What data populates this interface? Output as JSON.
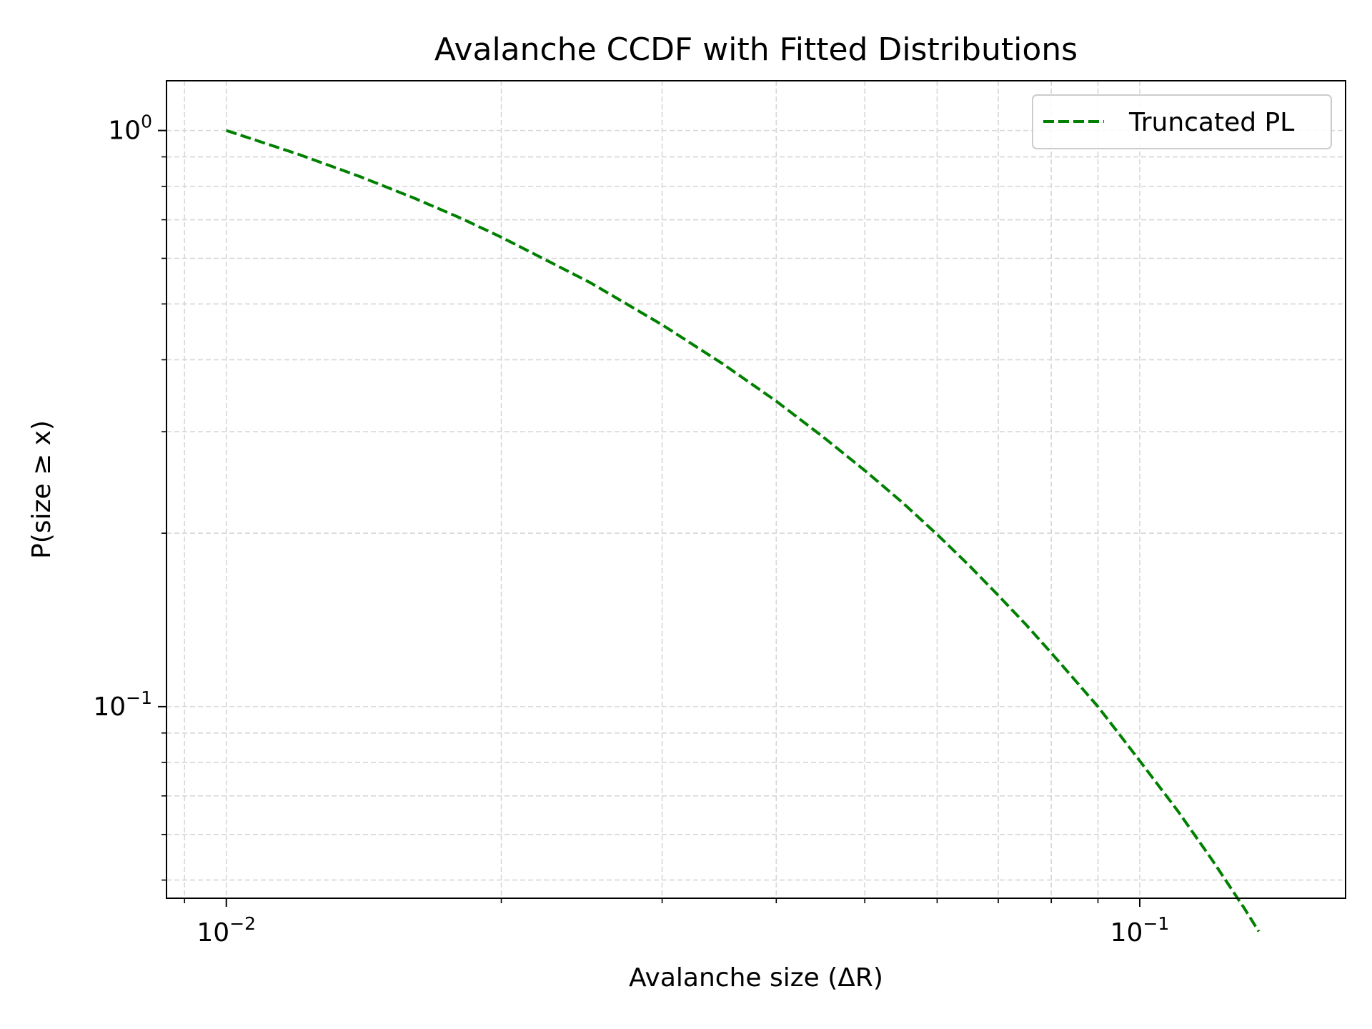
{
  "chart_data": {
    "type": "line",
    "title": "Avalanche CCDF with Fitted Distributions",
    "xlabel": "Avalanche size (ΔR)",
    "ylabel": "P(size ≥ x)",
    "xscale": "log",
    "yscale": "log",
    "xlim": [
      0.0086,
      0.168
    ],
    "ylim": [
      0.0465,
      1.22
    ],
    "grid": true,
    "legend_position": "top-right",
    "x_ticks": [
      {
        "value": 0.01,
        "base": "10",
        "exp": "−2"
      },
      {
        "value": 0.1,
        "base": "10",
        "exp": "−1"
      }
    ],
    "y_ticks": [
      {
        "value": 1,
        "base": "10",
        "exp": "0"
      },
      {
        "value": 0.1,
        "base": "10",
        "exp": "−1"
      }
    ],
    "series": [
      {
        "name": "Truncated PL",
        "color": "#008000",
        "line_style": "dashed",
        "x": [
          0.01,
          0.012,
          0.014,
          0.016,
          0.018,
          0.02,
          0.025,
          0.03,
          0.035,
          0.04,
          0.045,
          0.05,
          0.055,
          0.06,
          0.065,
          0.07,
          0.075,
          0.08,
          0.085,
          0.09,
          0.095,
          0.1,
          0.11,
          0.12,
          0.13,
          0.135
        ],
        "y": [
          1.0,
          0.909,
          0.832,
          0.765,
          0.706,
          0.653,
          0.545,
          0.46,
          0.393,
          0.339,
          0.294,
          0.257,
          0.226,
          0.199,
          0.176,
          0.156,
          0.139,
          0.124,
          0.111,
          0.1,
          0.0895,
          0.0805,
          0.066,
          0.0542,
          0.0448,
          0.0407
        ]
      }
    ]
  }
}
